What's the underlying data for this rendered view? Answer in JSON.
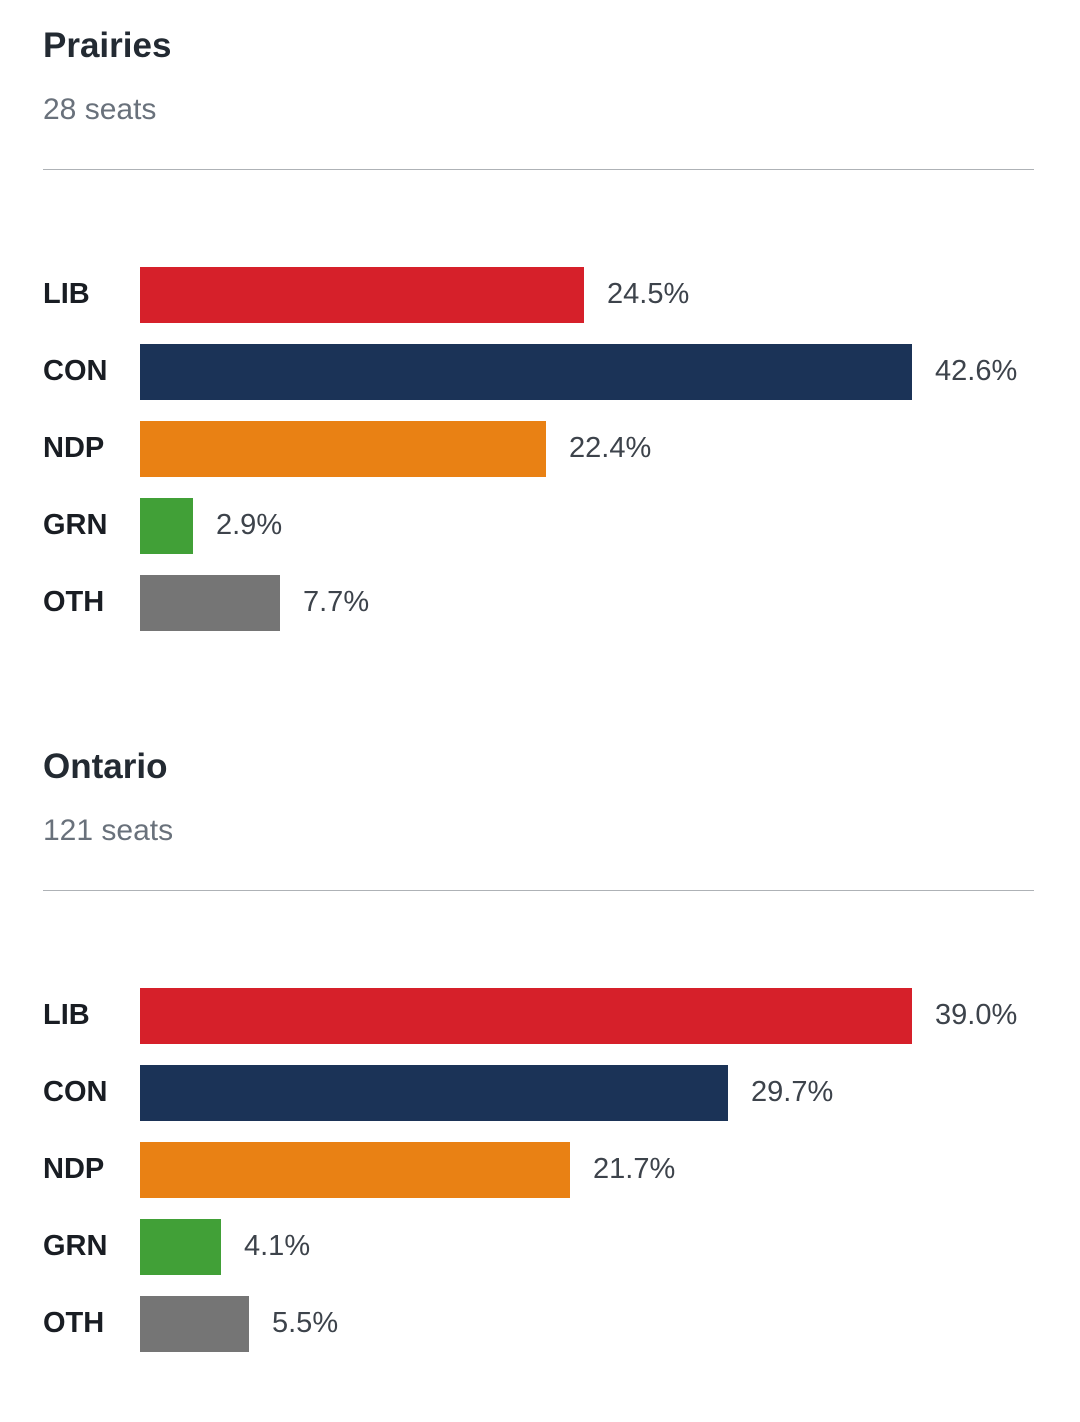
{
  "page": {
    "background": "#ffffff",
    "text_color": "#232a32",
    "muted_text_color": "#69717b",
    "divider_color": "#aeb2b6"
  },
  "chart_data": [
    {
      "type": "bar",
      "orientation": "horizontal",
      "title": "Prairies",
      "subtitle": "28 seats",
      "categories": [
        "LIB",
        "CON",
        "NDP",
        "GRN",
        "OTH"
      ],
      "values": [
        24.5,
        42.6,
        22.4,
        2.9,
        7.7
      ],
      "value_labels": [
        "24.5%",
        "42.6%",
        "22.4%",
        "2.9%",
        "7.7%"
      ],
      "value_suffix": "%",
      "colors": [
        "#d6202a",
        "#1b3357",
        "#e98114",
        "#41a037",
        "#757575"
      ],
      "bars_scaled_to": "max-value",
      "grid": false,
      "legend": false
    },
    {
      "type": "bar",
      "orientation": "horizontal",
      "title": "Ontario",
      "subtitle": "121 seats",
      "categories": [
        "LIB",
        "CON",
        "NDP",
        "GRN",
        "OTH"
      ],
      "values": [
        39.0,
        29.7,
        21.7,
        4.1,
        5.5
      ],
      "value_labels": [
        "39.0%",
        "29.7%",
        "21.7%",
        "4.1%",
        "5.5%"
      ],
      "value_suffix": "%",
      "colors": [
        "#d6202a",
        "#1b3357",
        "#e98114",
        "#41a037",
        "#757575"
      ],
      "bars_scaled_to": "max-value",
      "grid": false,
      "legend": false
    }
  ]
}
